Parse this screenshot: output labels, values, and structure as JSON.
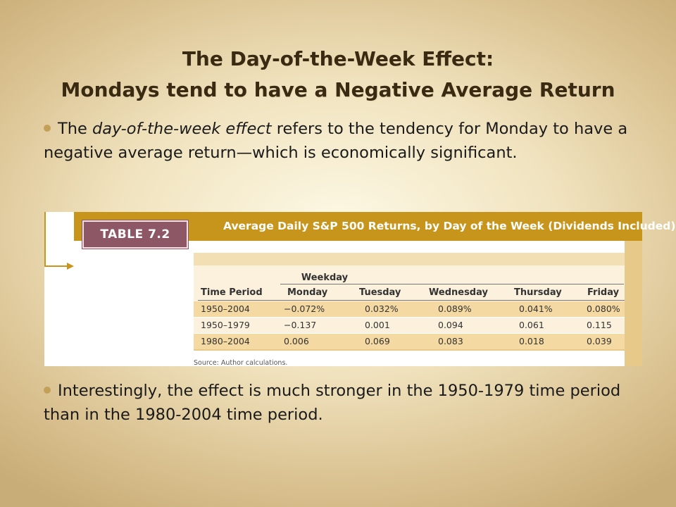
{
  "slide": {
    "title_line1": "The Day-of-the-Week Effect:",
    "title_line2": "Mondays tend to have a Negative Average Return",
    "bullet1": {
      "pre": "The ",
      "em": "day-of-the-week effect",
      "post": " refers to the tendency for Monday to have a negative average return—which is economically significant."
    },
    "bullet2": "Interestingly, the effect is much stronger in the 1950-1979 time period than in the 1980-2004 time period."
  },
  "table": {
    "tag": "TABLE 7.2",
    "title": "Average Daily S&P 500 Returns, by Day of the Week (Dividends Included)",
    "group_header": "Weekday",
    "columns": [
      "Time Period",
      "Monday",
      "Tuesday",
      "Wednesday",
      "Thursday",
      "Friday"
    ],
    "rows": [
      [
        "1950–2004",
        "−0.072%",
        "0.032%",
        "0.089%",
        "0.041%",
        "0.080%"
      ],
      [
        "1950–1979",
        "−0.137",
        "0.001",
        "0.094",
        "0.061",
        "0.115"
      ],
      [
        "1980–2004",
        "0.006",
        "0.069",
        "0.083",
        "0.018",
        "0.039"
      ]
    ],
    "source": "Source: Author calculations.",
    "colors": {
      "banner": "#c8951c",
      "tag": "#8e5766",
      "row_shaded": "#f4d9a2",
      "row_plain": "#fbf1dc",
      "bullet": "#c2a058"
    }
  }
}
